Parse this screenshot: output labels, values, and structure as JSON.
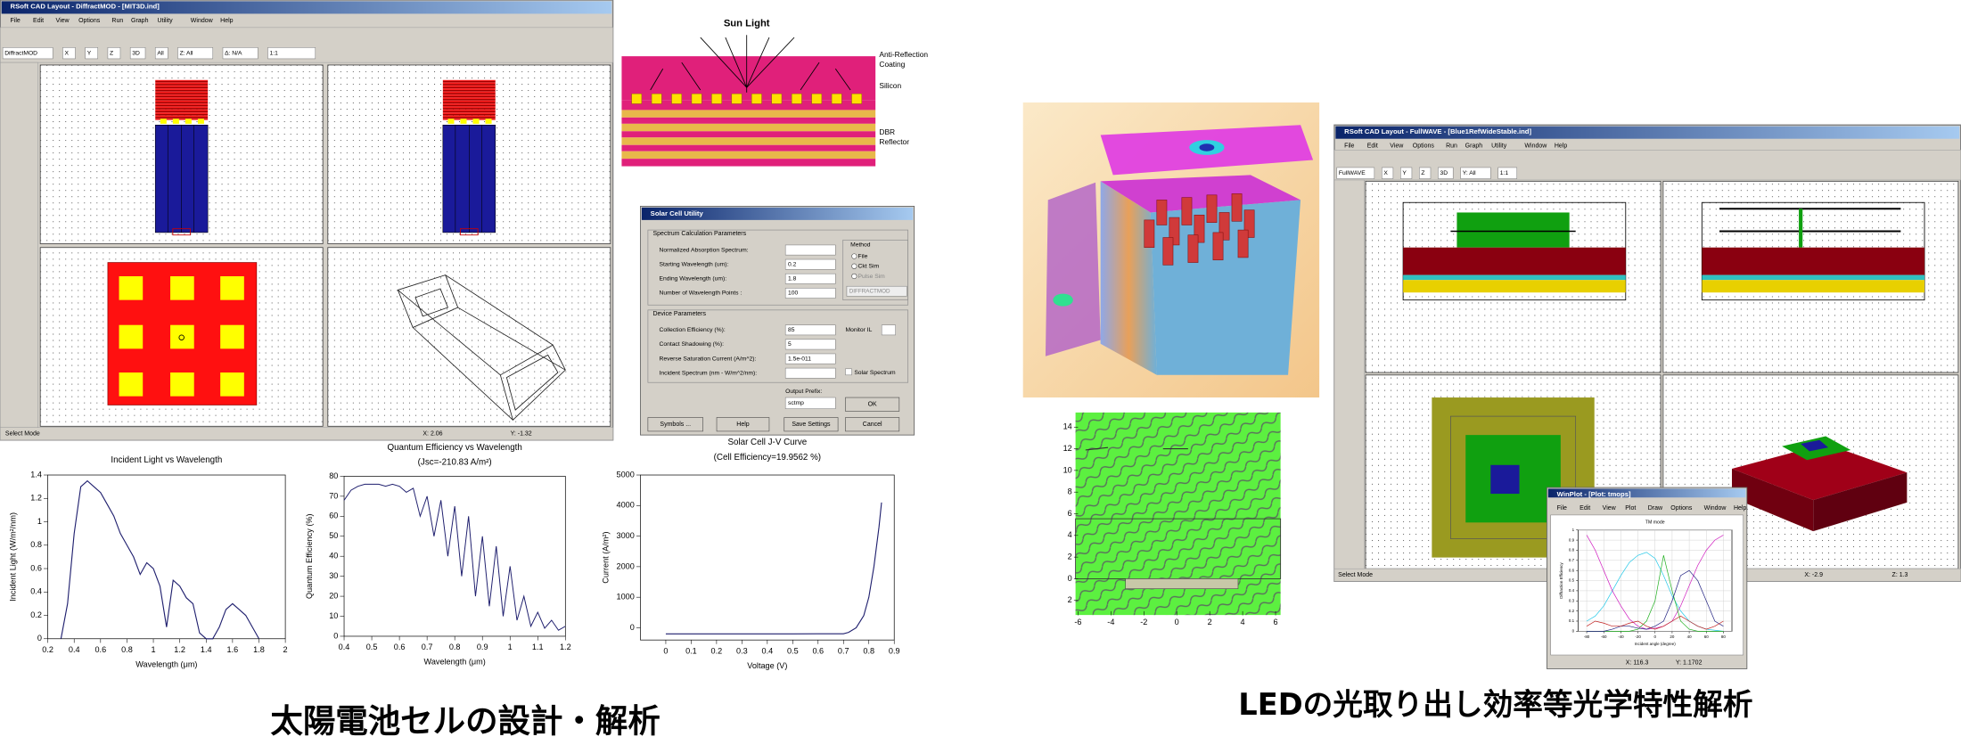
{
  "left_window": {
    "title": "RSoft CAD Layout - DiffractMOD - [MIT3D.ind]",
    "menu": [
      "File",
      "Edit",
      "View",
      "Options",
      "Run",
      "Graph",
      "Utility",
      "Window",
      "Help"
    ],
    "toolbar": [
      "DiffractMOD",
      "X",
      "Y",
      "Z",
      "3D",
      "All",
      "Z: All",
      "Δ: N/A",
      "1:1"
    ],
    "status": [
      "Select Mode",
      "X: 2.06",
      "Y: -1.32"
    ]
  },
  "structure_diagram": {
    "title": "Sun Light",
    "labels": [
      [
        "Anti-Reflection",
        "Coating"
      ],
      [
        "Silicon"
      ],
      [
        "DBR",
        "Reflector"
      ]
    ]
  },
  "dialog": {
    "title": "Solar Cell Utility",
    "sections": [
      "Spectrum Calculation Parameters",
      "Device Parameters"
    ],
    "spectrum_fields": [
      {
        "label": "Normalized Absorption Spectrum:"
      },
      {
        "label": "Starting Wavelength (um):",
        "value": "0.2"
      },
      {
        "label": "Ending Wavelength (um):",
        "value": "1.8"
      },
      {
        "label": "Number of Wavelength Points :",
        "value": "100"
      }
    ],
    "method": [
      "Method",
      "File",
      "Ckt Sim",
      "Pulse Sim",
      "DIFFRACTMOD"
    ],
    "device_fields": [
      {
        "label": "Collection Efficiency (%):",
        "value": "85"
      },
      {
        "label": "Contact Shadowing (%):",
        "value": "5"
      },
      {
        "label": "Reverse Saturation Current (A/m^2):",
        "value": "1.5e-011"
      },
      {
        "label": "Incident Spectrum (nm - W/m^2/nm):"
      }
    ],
    "monitor": "Monitor IL",
    "solar_spectrum": "Solar Spectrum",
    "output_prefix": "Output Prefix:",
    "prefix_value": "sctmp",
    "buttons": [
      "OK",
      "Symbols ...",
      "Help",
      "Save Settings",
      "Cancel"
    ]
  },
  "right_window": {
    "title": "RSoft CAD Layout - FullWAVE - [Blue1RefWideStable.ind]",
    "menu": [
      "File",
      "Edit",
      "View",
      "Options",
      "Run",
      "Graph",
      "Utility",
      "Window",
      "Help"
    ],
    "toolbar": [
      "FullWAVE",
      "X",
      "Y",
      "Z",
      "3D",
      "Y: All",
      "1:1"
    ],
    "status": [
      "Select Mode",
      "X: -2.9",
      "Z: 1.3"
    ]
  },
  "plot_window": {
    "title": "WinPlot - [Plot: tmops]",
    "menu": [
      "File",
      "Edit",
      "View",
      "Plot",
      "Draw",
      "Options",
      "Window",
      "Help"
    ],
    "status": [
      "X: 116.3",
      "Y: 1.1702"
    ]
  },
  "captions": [
    "太陽電池セルの設計・解析",
    "LEDの光取り出し効率等光学特性解析"
  ],
  "chart_data": [
    {
      "type": "line",
      "title": "Incident Light vs Wavelength",
      "x_label": "Wavelength (μm)",
      "y_label": "Incident Light (W/m²/nm)",
      "xlim": [
        0.2,
        2.0
      ],
      "ylim": [
        0,
        1.4
      ],
      "xticks": [
        0.2,
        0.4,
        0.6,
        0.8,
        1.0,
        1.2,
        1.4,
        1.6,
        1.8,
        2.0
      ],
      "yticks": [
        0,
        0.2,
        0.4,
        0.6,
        0.8,
        1.0,
        1.2,
        1.4
      ],
      "x": [
        0.3,
        0.35,
        0.4,
        0.45,
        0.5,
        0.55,
        0.6,
        0.65,
        0.7,
        0.75,
        0.8,
        0.85,
        0.9,
        0.95,
        1.0,
        1.05,
        1.1,
        1.15,
        1.2,
        1.25,
        1.3,
        1.35,
        1.4,
        1.45,
        1.5,
        1.55,
        1.6,
        1.65,
        1.7,
        1.75,
        1.8
      ],
      "series": [
        {
          "color": "#1f1f6e",
          "values": [
            0.0,
            0.3,
            0.9,
            1.3,
            1.35,
            1.3,
            1.25,
            1.15,
            1.05,
            0.9,
            0.8,
            0.7,
            0.55,
            0.65,
            0.6,
            0.45,
            0.1,
            0.5,
            0.45,
            0.35,
            0.3,
            0.05,
            0.0,
            0.0,
            0.1,
            0.25,
            0.3,
            0.25,
            0.2,
            0.1,
            0.0
          ]
        }
      ]
    },
    {
      "type": "line",
      "title": "Quantum Efficiency vs Wavelength",
      "subtitle": "(Jsc=-210.83 A/m²)",
      "x_label": "Wavelength (μm)",
      "y_label": "Quantum Efficiency (%)",
      "xlim": [
        0.4,
        1.2
      ],
      "ylim": [
        0,
        80
      ],
      "xticks": [
        0.4,
        0.5,
        0.6,
        0.7,
        0.8,
        0.9,
        1.0,
        1.1,
        1.2
      ],
      "yticks": [
        0,
        10,
        20,
        30,
        40,
        50,
        60,
        70,
        80
      ],
      "x": [
        0.4,
        0.425,
        0.45,
        0.475,
        0.5,
        0.525,
        0.55,
        0.575,
        0.6,
        0.625,
        0.65,
        0.675,
        0.7,
        0.725,
        0.75,
        0.775,
        0.8,
        0.825,
        0.85,
        0.875,
        0.9,
        0.925,
        0.95,
        0.975,
        1.0,
        1.025,
        1.05,
        1.075,
        1.1,
        1.125,
        1.15,
        1.175,
        1.2
      ],
      "series": [
        {
          "color": "#1f1f6e",
          "values": [
            68,
            73,
            75,
            76,
            76,
            76,
            75,
            76,
            75,
            72,
            74,
            60,
            70,
            50,
            68,
            40,
            65,
            30,
            60,
            20,
            50,
            15,
            45,
            10,
            35,
            8,
            20,
            5,
            12,
            4,
            8,
            3,
            5
          ]
        }
      ]
    },
    {
      "type": "line",
      "title": "Solar Cell J-V Curve",
      "subtitle": "(Cell Efficiency=19.9562 %)",
      "x_label": "Voltage (V)",
      "y_label": "Current (A/m²)",
      "xlim": [
        -0.1,
        0.9
      ],
      "ylim": [
        -400,
        5000
      ],
      "xticks": [
        0,
        0.1,
        0.2,
        0.3,
        0.4,
        0.5,
        0.6,
        0.7,
        0.8,
        0.9
      ],
      "yticks": [
        0,
        1000,
        2000,
        3000,
        4000,
        5000
      ],
      "x": [
        0,
        0.1,
        0.2,
        0.3,
        0.4,
        0.5,
        0.6,
        0.7,
        0.72,
        0.75,
        0.78,
        0.8,
        0.82,
        0.84,
        0.85
      ],
      "series": [
        {
          "color": "#1f1f6e",
          "values": [
            -200,
            -200,
            -200,
            -200,
            -200,
            -200,
            -198,
            -195,
            -150,
            0,
            400,
            1000,
            2000,
            3300,
            4100
          ]
        }
      ]
    },
    {
      "type": "line",
      "title": "TM mode",
      "x_label": "Incident angle (degree)",
      "y_label": "Diffraction Efficiency",
      "grid": true,
      "xlim": [
        -90,
        90
      ],
      "ylim": [
        0,
        1
      ],
      "xticks": [
        -80,
        -60,
        -40,
        -20,
        0,
        20,
        40,
        60,
        80
      ],
      "yticks": [
        0,
        0.1,
        0.2,
        0.3,
        0.4,
        0.5,
        0.6,
        0.7,
        0.8,
        0.9,
        1
      ],
      "x": [
        -80,
        -70,
        -60,
        -50,
        -40,
        -30,
        -20,
        -10,
        0,
        10,
        20,
        30,
        40,
        50,
        60,
        70,
        80
      ],
      "series": [
        {
          "color": "#22c8e8",
          "values": [
            0.1,
            0.15,
            0.25,
            0.4,
            0.55,
            0.68,
            0.75,
            0.78,
            0.72,
            0.55,
            0.35,
            0.2,
            0.1,
            0.05,
            0.02,
            0.01,
            0
          ]
        },
        {
          "color": "#d020c0",
          "values": [
            0.95,
            0.8,
            0.6,
            0.4,
            0.25,
            0.12,
            0.05,
            0.02,
            0.03,
            0.05,
            0.1,
            0.25,
            0.45,
            0.65,
            0.8,
            0.9,
            0.95
          ]
        },
        {
          "color": "#20b020",
          "values": [
            0,
            0,
            0,
            0,
            0,
            0,
            0.02,
            0.1,
            0.3,
            0.75,
            0.4,
            0.1,
            0.02,
            0,
            0,
            0,
            0
          ]
        },
        {
          "color": "#202080",
          "values": [
            0,
            0,
            0,
            0.02,
            0.05,
            0.05,
            0.03,
            0.02,
            0.05,
            0.1,
            0.3,
            0.55,
            0.6,
            0.5,
            0.3,
            0.1,
            0.05
          ]
        },
        {
          "color": "#c02020",
          "values": [
            0.05,
            0.1,
            0.08,
            0.05,
            0.05,
            0.08,
            0.1,
            0.05,
            0.02,
            0.05,
            0.1,
            0.15,
            0.1,
            0.05,
            0.02,
            0.05,
            0.1
          ]
        }
      ]
    },
    {
      "type": "field",
      "xlim": [
        -6,
        6
      ],
      "ylim": [
        -3,
        15
      ],
      "xticks": [
        -6,
        -4,
        -2,
        0,
        2,
        4,
        6
      ],
      "yticks": [
        14,
        12,
        10,
        8,
        6,
        4,
        2,
        0,
        {
          "value": -2,
          "label": "2"
        }
      ]
    }
  ]
}
